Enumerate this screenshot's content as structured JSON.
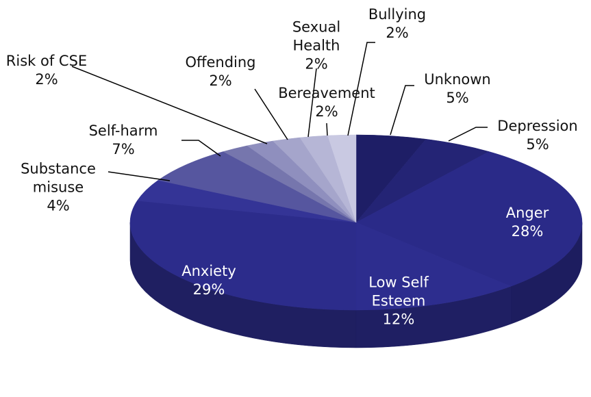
{
  "chart_data": {
    "type": "pie",
    "categories": [
      "Unknown",
      "Depression",
      "Anger",
      "Low Self Esteem",
      "Anxiety",
      "Substance misuse",
      "Self-harm",
      "Risk of CSE",
      "Offending",
      "Sexual Health",
      "Bereavement",
      "Bullying"
    ],
    "values": [
      5,
      5,
      28,
      12,
      29,
      4,
      7,
      2,
      2,
      2,
      2,
      2
    ],
    "value_labels": [
      "5%",
      "5%",
      "28%",
      "12%",
      "29%",
      "4%",
      "7%",
      "2%",
      "2%",
      "2%",
      "2%",
      "2%"
    ],
    "colors": [
      "#1e1e66",
      "#242475",
      "#2a2a88",
      "#2d2d8e",
      "#2c2c8b",
      "#343496",
      "#56569f",
      "#7676ad",
      "#8f8fbe",
      "#a5a5cb",
      "#b6b6d6",
      "#c9c9e2"
    ]
  }
}
